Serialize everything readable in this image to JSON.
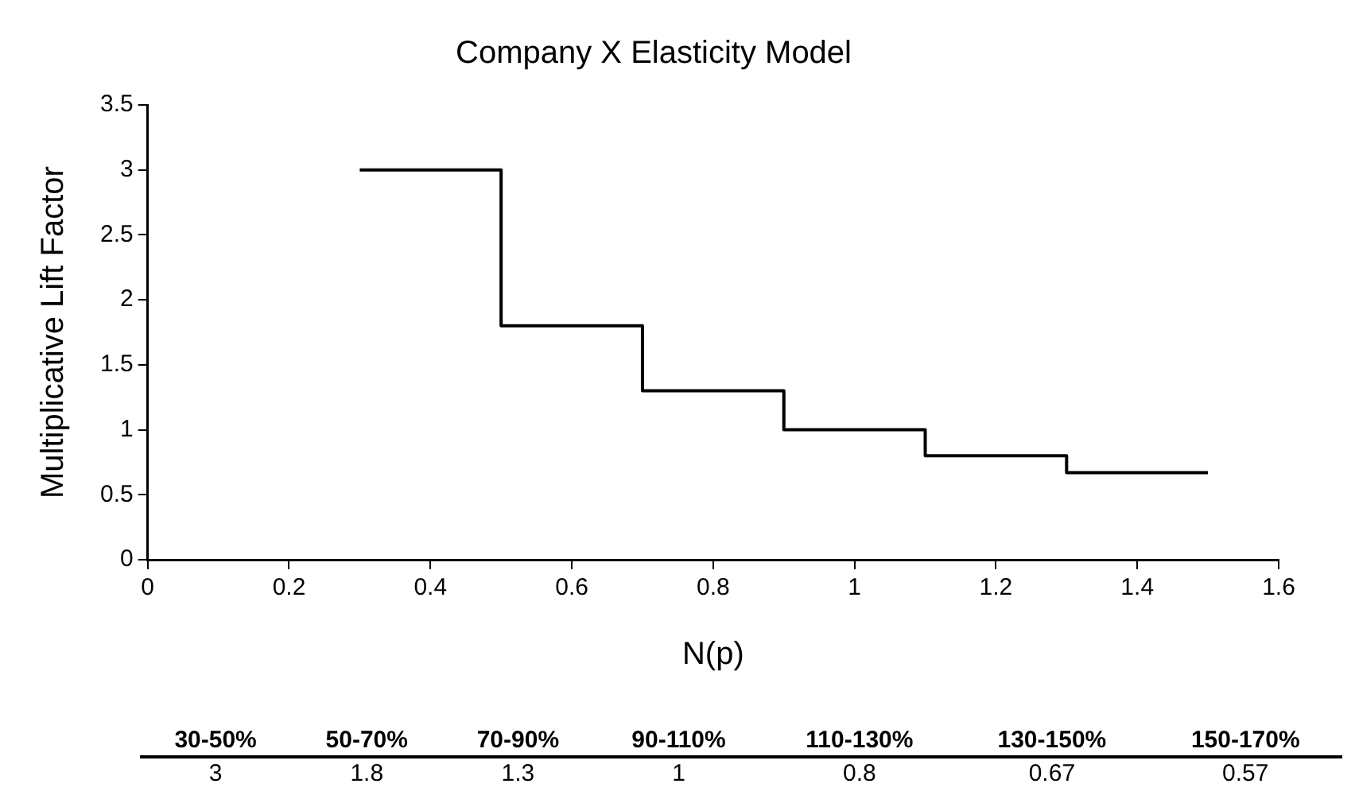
{
  "chart_data": [
    {
      "type": "step",
      "title": "Company X Elasticity Model",
      "xlabel": "N(p)",
      "ylabel": "Multiplicative Lift Factor",
      "x": [
        0.3,
        0.5,
        0.7,
        0.9,
        1.1,
        1.3,
        1.5
      ],
      "series": [
        {
          "color": "#000000",
          "values": [
            3,
            1.8,
            1.3,
            1,
            0.8,
            0.67,
            0.67
          ]
        }
      ],
      "xlim": [
        0,
        1.6
      ],
      "xticks": [
        0,
        0.2,
        0.4,
        0.6,
        0.8,
        1,
        1.2,
        1.4,
        1.6
      ],
      "ylim": [
        0,
        3.5
      ],
      "yticks": [
        0,
        0.5,
        1,
        1.5,
        2,
        2.5,
        3,
        3.5
      ],
      "grid": false,
      "legend": false,
      "marker": "none",
      "line_style": "solid"
    },
    {
      "type": "other",
      "categories": [
        "30-50%",
        "50-70%",
        "70-90%",
        "90-110%",
        "110-130%",
        "130-150%",
        "150-170%"
      ],
      "values": [
        3,
        1.8,
        1.3,
        1,
        0.8,
        0.67,
        0.57
      ],
      "data_labels": true
    }
  ]
}
